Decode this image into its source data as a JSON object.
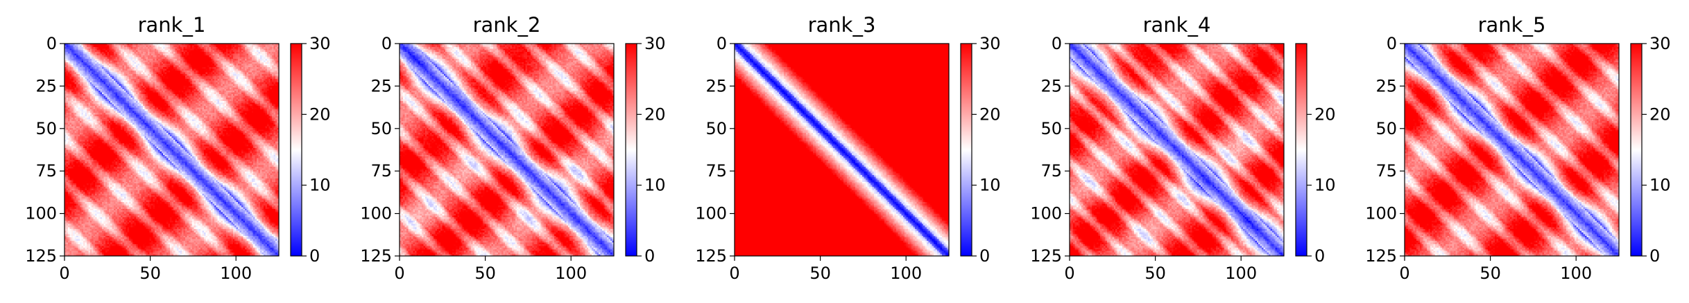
{
  "chart_data": [
    {
      "type": "heatmap",
      "title": "rank_1",
      "pattern": "stripes",
      "xlim": [
        0,
        125
      ],
      "ylim": [
        125,
        0
      ],
      "xticks": [
        0,
        50,
        100
      ],
      "yticks": [
        0,
        25,
        50,
        75,
        100,
        125
      ],
      "colorbar": {
        "min": 0,
        "max": 30,
        "ticks": [
          0,
          10,
          20,
          30
        ]
      }
    },
    {
      "type": "heatmap",
      "title": "rank_2",
      "pattern": "stripes",
      "xlim": [
        0,
        125
      ],
      "ylim": [
        125,
        0
      ],
      "xticks": [
        0,
        50,
        100
      ],
      "yticks": [
        0,
        25,
        50,
        75,
        100,
        125
      ],
      "colorbar": {
        "min": 0,
        "max": 30,
        "ticks": [
          0,
          10,
          20,
          30
        ]
      }
    },
    {
      "type": "heatmap",
      "title": "rank_3",
      "pattern": "helix",
      "xlim": [
        0,
        125
      ],
      "ylim": [
        125,
        0
      ],
      "xticks": [
        0,
        50,
        100
      ],
      "yticks": [
        0,
        25,
        50,
        75,
        100,
        125
      ],
      "colorbar": {
        "min": 0,
        "max": 30,
        "ticks": [
          0,
          10,
          20,
          30
        ]
      }
    },
    {
      "type": "heatmap",
      "title": "rank_4",
      "pattern": "stripes",
      "xlim": [
        0,
        125
      ],
      "ylim": [
        125,
        0
      ],
      "xticks": [
        0,
        50,
        100
      ],
      "yticks": [
        0,
        25,
        50,
        75,
        100,
        125
      ],
      "colorbar": {
        "min": 0,
        "max": 30,
        "ticks": [
          0,
          10,
          20
        ]
      }
    },
    {
      "type": "heatmap",
      "title": "rank_5",
      "pattern": "stripes",
      "xlim": [
        0,
        125
      ],
      "ylim": [
        125,
        0
      ],
      "xticks": [
        0,
        50,
        100
      ],
      "yticks": [
        0,
        25,
        50,
        75,
        100,
        125
      ],
      "colorbar": {
        "min": 0,
        "max": 30,
        "ticks": [
          0,
          10,
          20,
          30
        ]
      }
    }
  ],
  "colormap": {
    "low": "#0000ff",
    "mid": "#ffffff",
    "high": "#ff0000"
  }
}
